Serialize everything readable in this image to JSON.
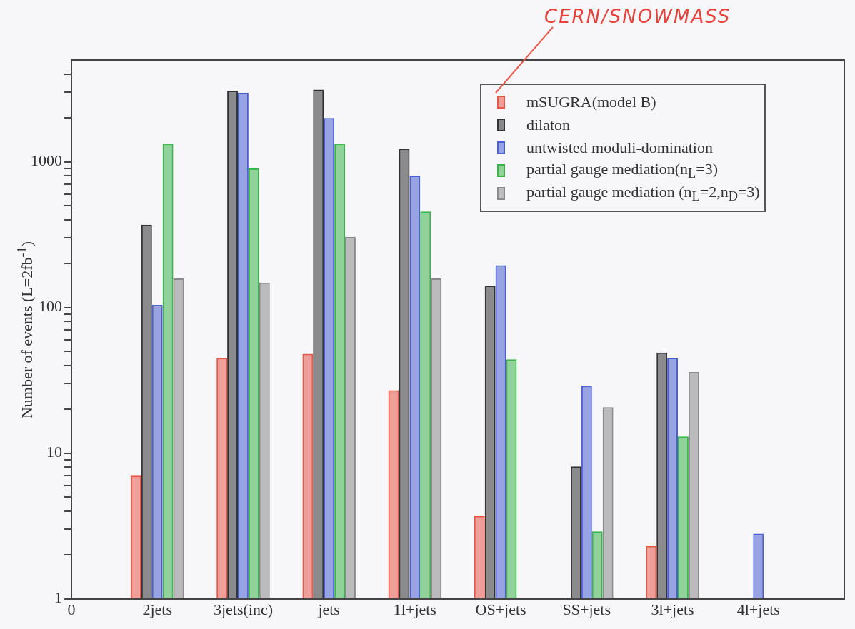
{
  "chart_data": {
    "type": "bar",
    "ylabel": "Number of events (L=2fb$^{-1}$)",
    "categories": [
      "0",
      "2jets",
      "3jets(inc)",
      "jets",
      "1l+jets",
      "OS+jets",
      "SS+jets",
      "3l+jets",
      "4l+jets",
      null
    ],
    "log": true,
    "ylim": [
      1,
      5000
    ],
    "yticks": [
      1,
      {
        "value": 2,
        "label": null
      },
      {
        "value": 3,
        "label": null
      },
      {
        "value": 4,
        "label": null
      },
      {
        "value": 5,
        "label": null
      },
      {
        "value": 6,
        "label": null
      },
      {
        "value": 7,
        "label": null
      },
      {
        "value": 8,
        "label": null
      },
      {
        "value": 9,
        "label": null
      },
      10,
      {
        "value": 20,
        "label": null
      },
      {
        "value": 30,
        "label": null
      },
      {
        "value": 40,
        "label": null
      },
      {
        "value": 50,
        "label": null
      },
      {
        "value": 60,
        "label": null
      },
      {
        "value": 70,
        "label": null
      },
      {
        "value": 80,
        "label": null
      },
      {
        "value": 90,
        "label": null
      },
      100,
      {
        "value": 200,
        "label": null
      },
      {
        "value": 300,
        "label": null
      },
      {
        "value": 400,
        "label": null
      },
      {
        "value": 500,
        "label": null
      },
      {
        "value": 600,
        "label": null
      },
      {
        "value": 700,
        "label": null
      },
      {
        "value": 800,
        "label": null
      },
      {
        "value": 900,
        "label": null
      },
      1000,
      {
        "value": 2000,
        "label": null
      },
      {
        "value": 3000,
        "label": null
      },
      {
        "value": 4000,
        "label": null
      }
    ],
    "grid": false,
    "legend": "top right",
    "series": [
      {
        "name": "mSUGRA(model B)",
        "color": "#e8584a",
        "values": [
          null,
          7.0,
          45,
          48,
          27,
          3.7,
          null,
          2.3,
          null,
          null
        ]
      },
      {
        "name": "dilaton",
        "color": "#333333",
        "values": [
          null,
          370,
          3070,
          3130,
          1230,
          141,
          8.1,
          49,
          null,
          null
        ]
      },
      {
        "name": "untwisted moduli-domination",
        "color": "#4a5fd0",
        "values": [
          null,
          104,
          2980,
          2000,
          800,
          195,
          29,
          45,
          2.8,
          null
        ]
      },
      {
        "name": "partial gauge mediation(n$_{L}$=3)",
        "color": "#3cb44b",
        "values": [
          null,
          1330,
          900,
          1330,
          455,
          44,
          2.9,
          13,
          null,
          null
        ]
      },
      {
        "name": "partial gauge mediation (n$_{L}$=2,n$_{D}$=3)",
        "color": "#8a8a8a",
        "values": [
          null,
          158,
          148,
          305,
          158,
          null,
          20.7,
          36,
          null,
          null
        ]
      }
    ],
    "annotations": [
      "CERN/SNOWMASS"
    ]
  }
}
